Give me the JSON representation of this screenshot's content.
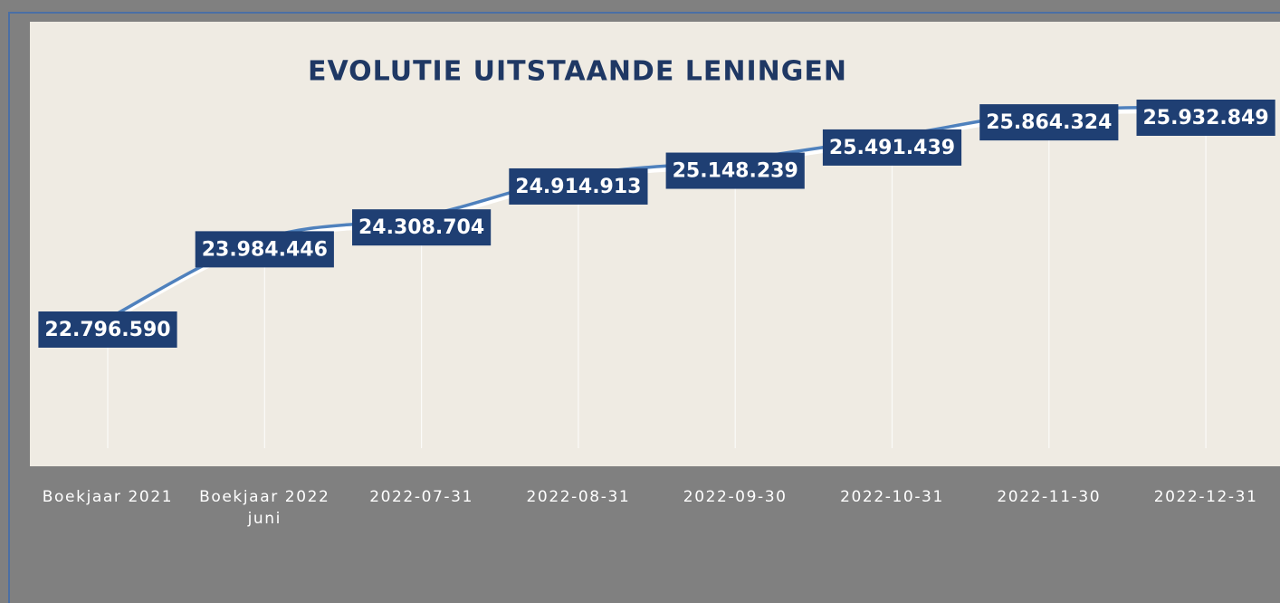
{
  "chart_data": {
    "type": "line",
    "title": "EVOLUTIE UITSTAANDE LENINGEN",
    "categories": [
      "Boekjaar 2021",
      "Boekjaar 2022 juni",
      "2022-07-31",
      "2022-08-31",
      "2022-09-30",
      "2022-10-31",
      "2022-11-30",
      "2022-12-31"
    ],
    "series": [
      {
        "color": "#4f81bd",
        "values": [
          22796590,
          23984446,
          24308704,
          24914913,
          25148239,
          25491439,
          25864324,
          25932849
        ],
        "value_labels": [
          "22.796.590",
          "23.984.446",
          "24.308.704",
          "24.914.913",
          "25.148.239",
          "25.491.439",
          "25.864.324",
          "25.932.849"
        ]
      }
    ]
  }
}
